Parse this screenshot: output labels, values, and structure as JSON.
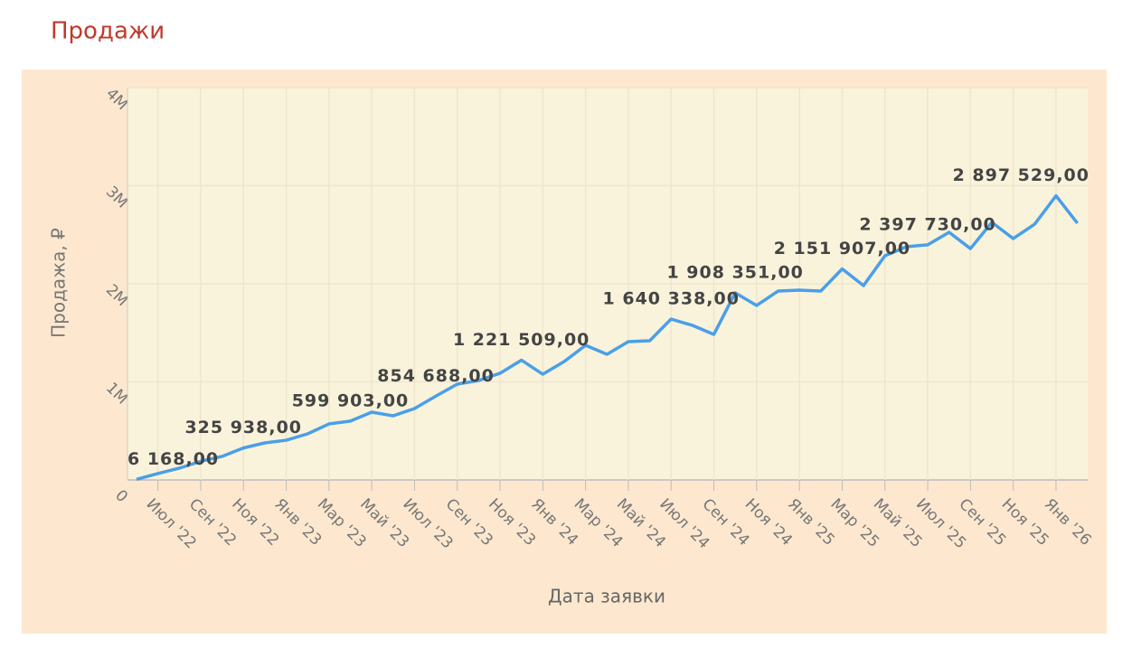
{
  "chart_data": {
    "type": "line",
    "title": "Продажи",
    "x_label": "Дата заявки",
    "y_label": "Продажа, ₽",
    "categories": [
      null,
      "Июл '22",
      null,
      "Сен '22",
      null,
      "Ноя '22",
      null,
      "Янв '23",
      null,
      "Мар '23",
      null,
      "Май '23",
      null,
      "Июл '23",
      null,
      "Сен '23",
      null,
      "Ноя '23",
      null,
      "Янв '24",
      null,
      "Мар '24",
      null,
      "Май '24",
      null,
      "Июл '24",
      null,
      "Сен '24",
      null,
      "Ноя '24",
      null,
      "Янв '25",
      null,
      "Мар '25",
      null,
      "Май '25",
      null,
      "Июл '25",
      null,
      "Сен '25",
      null,
      "Ноя '25",
      null,
      "Янв '26",
      null
    ],
    "series": [
      {
        "name": "Продажа",
        "color": "#4a9fe8",
        "values": [
          6168,
          65000,
          120000,
          190000,
          240000,
          325938,
          378000,
          405000,
          470000,
          571000,
          599903,
          691000,
          654000,
          728000,
          854688,
          977000,
          1014000,
          1088000,
          1221509,
          1078000,
          1207000,
          1373000,
          1281000,
          1410000,
          1419000,
          1640338,
          1576000,
          1484000,
          1908351,
          1779000,
          1926000,
          1935000,
          1926000,
          2151907,
          1982000,
          2286000,
          2378000,
          2397730,
          2525000,
          2359000,
          2627000,
          2461000,
          2608000,
          2897529,
          2618000
        ],
        "value_labels": [
          "6 168,00",
          null,
          null,
          null,
          null,
          "325 938,00",
          null,
          null,
          null,
          null,
          "599 903,00",
          null,
          null,
          null,
          "854 688,00",
          null,
          null,
          null,
          "1 221 509,00",
          null,
          null,
          null,
          null,
          null,
          null,
          "1 640 338,00",
          null,
          null,
          "1 908 351,00",
          null,
          null,
          null,
          null,
          "2 151 907,00",
          null,
          null,
          null,
          "2 397 730,00",
          null,
          null,
          null,
          null,
          null,
          "2 897 529,00",
          null
        ]
      }
    ],
    "ylim": [
      0,
      4000000
    ],
    "yticks": [
      0,
      {
        "value": 1000000,
        "label": "1M"
      },
      {
        "value": 2000000,
        "label": "2M"
      },
      {
        "value": 3000000,
        "label": "3M"
      },
      {
        "value": 4000000,
        "label": "4M"
      }
    ],
    "grid": true
  }
}
